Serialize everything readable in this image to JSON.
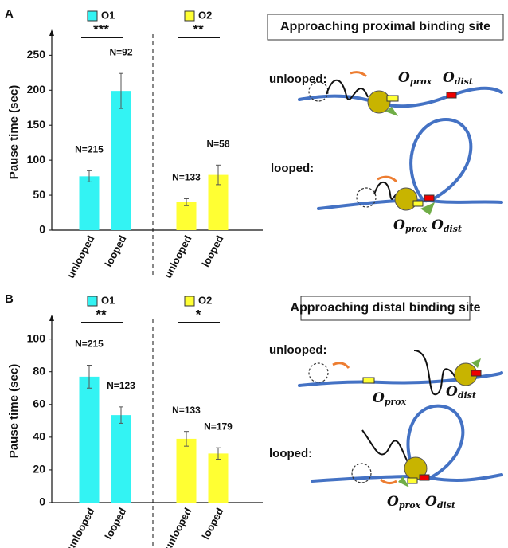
{
  "chart_data": [
    {
      "type": "bar",
      "panel": "A",
      "y_label": "Pause time (sec)",
      "categories": [
        "unlooped",
        "looped"
      ],
      "series": [
        {
          "name": "O1",
          "color": "#33f3f3",
          "values": [
            77,
            199
          ],
          "errors": [
            8,
            25
          ],
          "n_labels": [
            "N=215",
            "N=92"
          ],
          "significance": "***"
        },
        {
          "name": "O2",
          "color": "#ffff33",
          "values": [
            40,
            79
          ],
          "errors": [
            5,
            14
          ],
          "n_labels": [
            "N=133",
            "N=58"
          ],
          "significance": "**"
        }
      ],
      "ylim": [
        0,
        280
      ],
      "yticks": [
        0,
        50,
        100,
        150,
        200,
        250
      ]
    },
    {
      "type": "bar",
      "panel": "B",
      "y_label": "Pause time (sec)",
      "categories": [
        "unlooped",
        "looped"
      ],
      "series": [
        {
          "name": "O1",
          "color": "#33f3f3",
          "values": [
            77,
            53.5
          ],
          "errors": [
            7,
            5
          ],
          "n_labels": [
            "N=215",
            "N=123"
          ],
          "significance": "**"
        },
        {
          "name": "O2",
          "color": "#ffff33",
          "values": [
            39,
            30
          ],
          "errors": [
            4.5,
            3.5
          ],
          "n_labels": [
            "N=133",
            "N=179"
          ],
          "significance": "*"
        }
      ],
      "ylim": [
        0,
        112
      ],
      "yticks": [
        0,
        20,
        40,
        60,
        80,
        100
      ]
    }
  ],
  "diagrams": [
    {
      "title": "Approaching proximal binding site",
      "unlooped": {
        "label": "unlooped:",
        "o_prox": {
          "main": "O",
          "sub": "prox"
        },
        "o_dist": {
          "main": "O",
          "sub": "dist"
        }
      },
      "looped": {
        "label": "looped:",
        "o_prox": {
          "main": "O",
          "sub": "prox"
        },
        "o_dist": {
          "main": "O",
          "sub": "dist"
        }
      }
    },
    {
      "title": "Approaching distal binding site",
      "unlooped": {
        "label": "unlooped:",
        "o_prox": {
          "main": "O",
          "sub": "prox"
        },
        "o_dist": {
          "main": "O",
          "sub": "dist"
        }
      },
      "looped": {
        "label": "looped:",
        "o_prox": {
          "main": "O",
          "sub": "prox"
        },
        "o_dist": {
          "main": "O",
          "sub": "dist"
        }
      }
    }
  ]
}
